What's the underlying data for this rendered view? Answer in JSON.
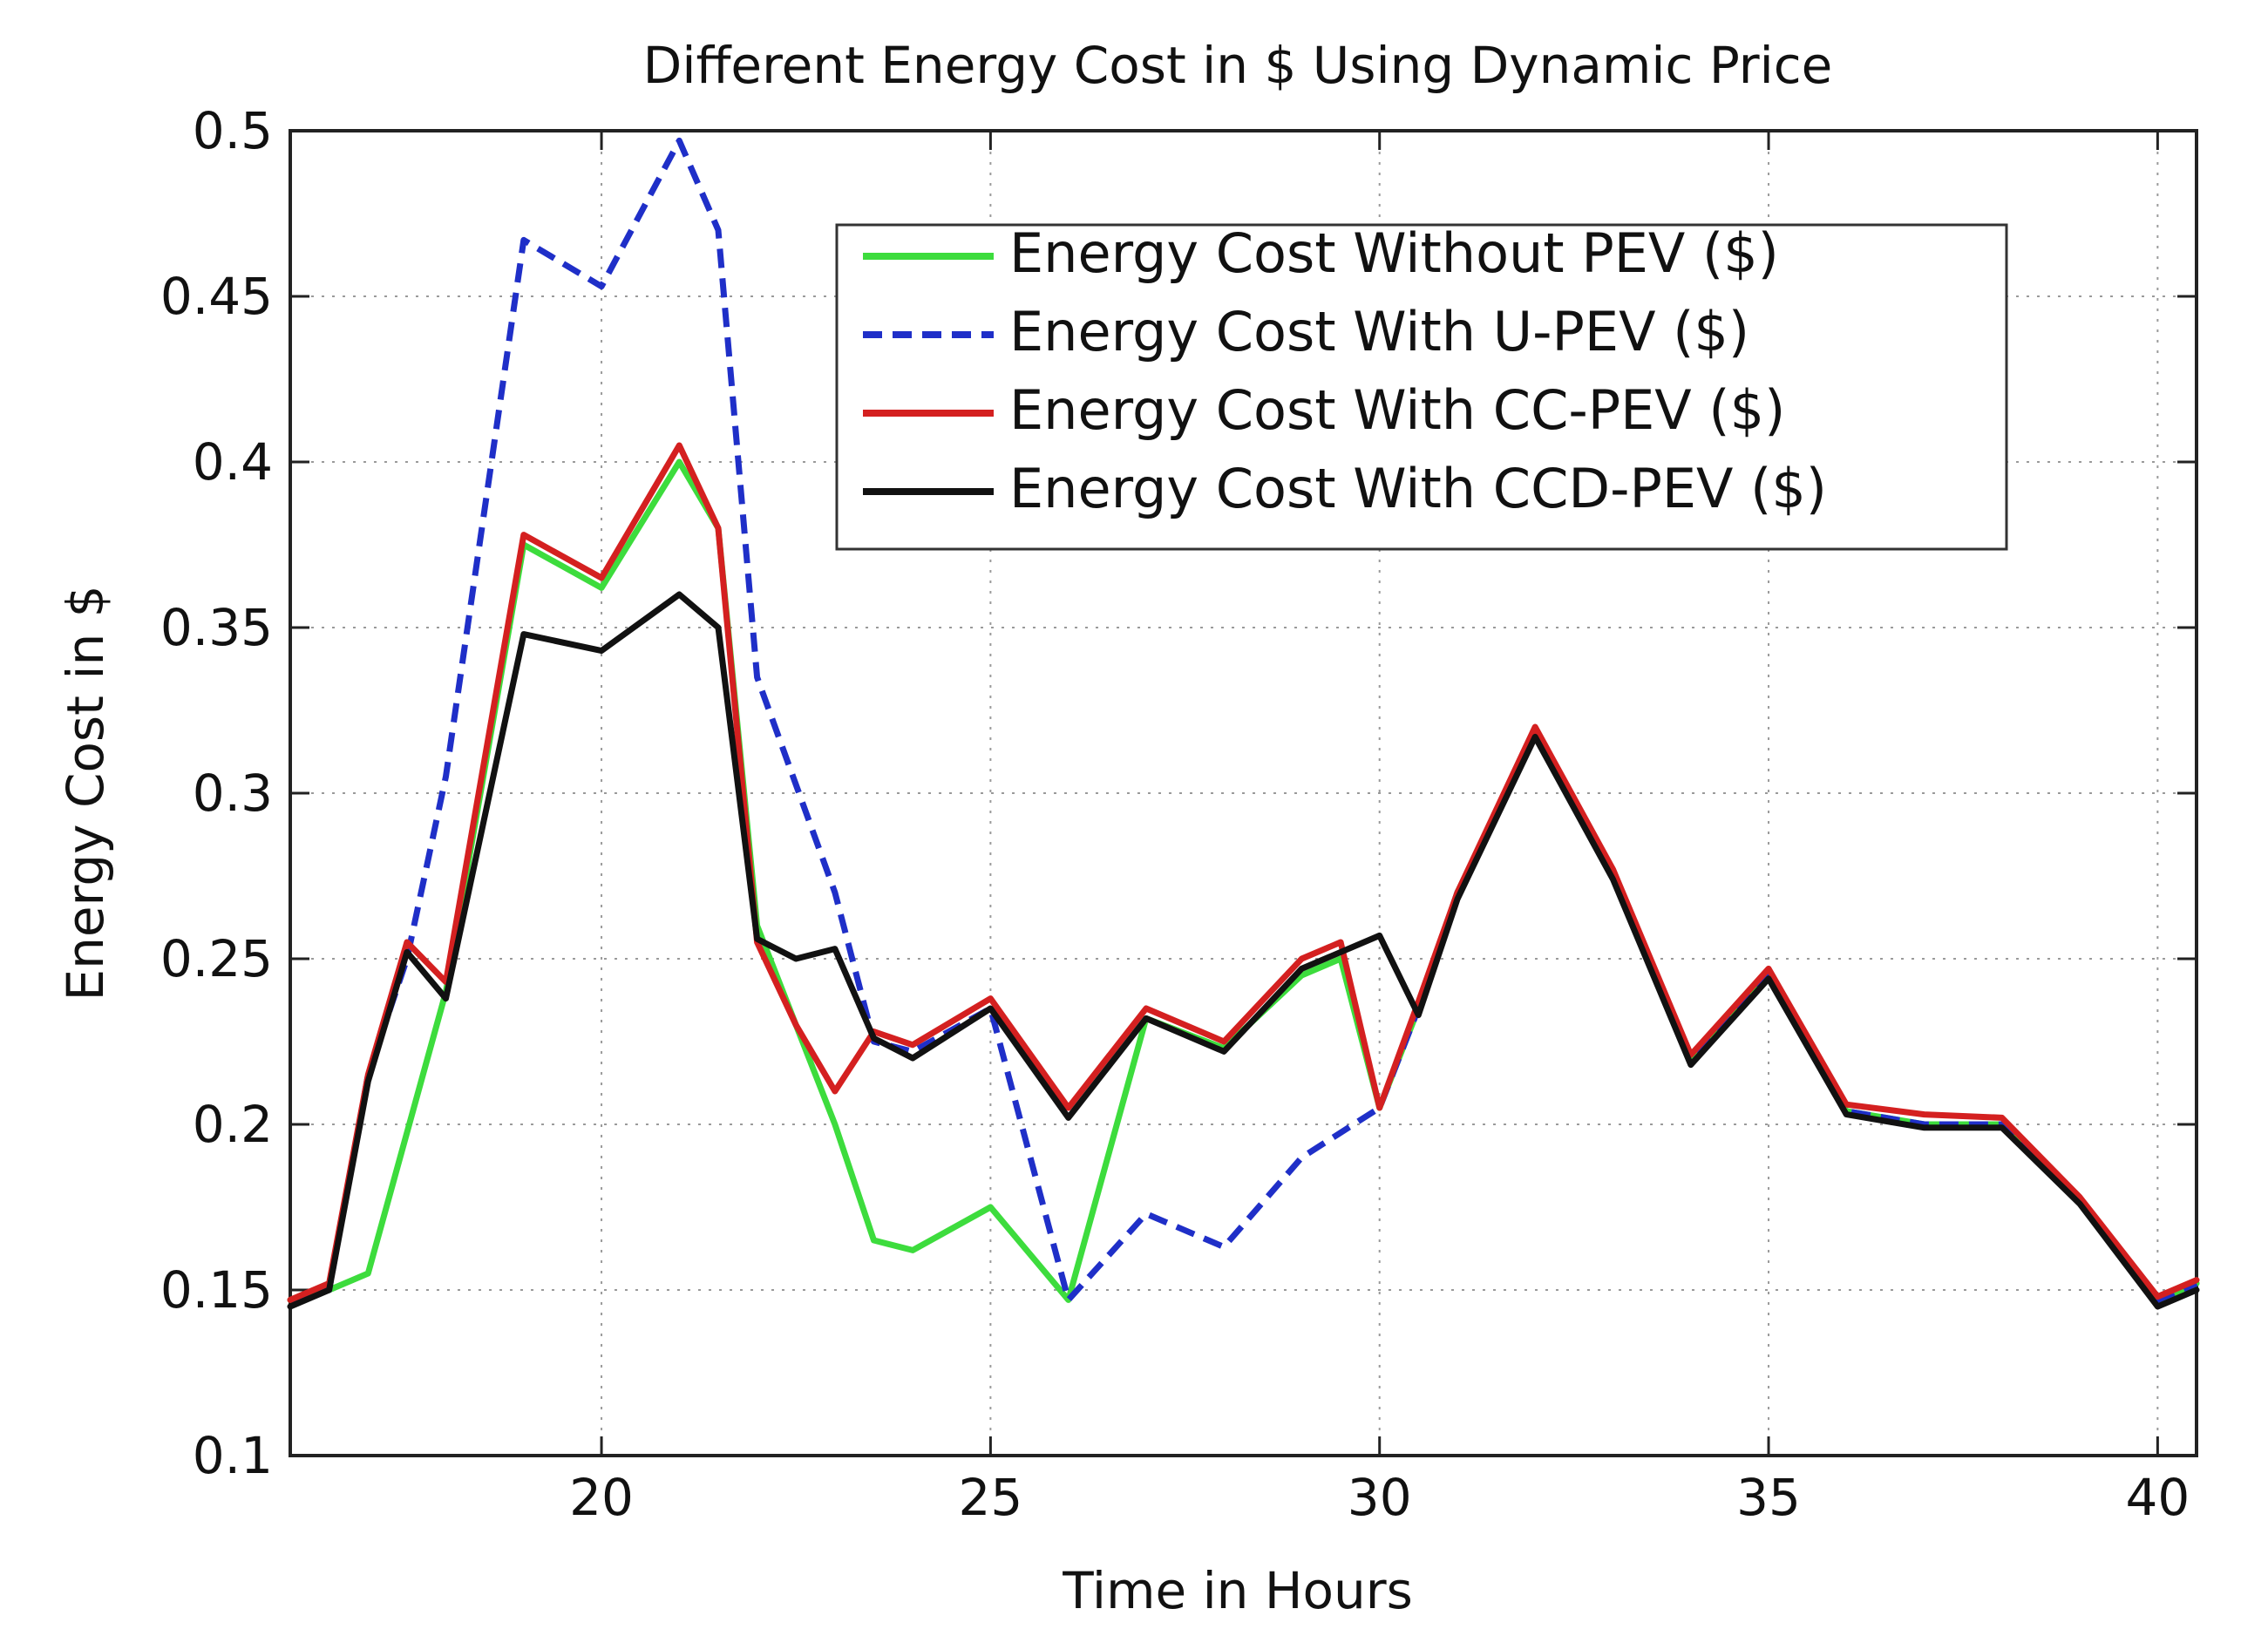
{
  "chart_data": {
    "type": "line",
    "title": "Different Energy Cost in $ Using Dynamic Price",
    "xlabel": "Time in Hours",
    "ylabel": "Energy Cost in $",
    "xlim": [
      16,
      40.5
    ],
    "ylim": [
      0.1,
      0.5
    ],
    "xticks": [
      20,
      25,
      30,
      35,
      40
    ],
    "yticks": [
      0.1,
      0.15,
      0.2,
      0.25,
      0.3,
      0.35,
      0.4,
      0.45,
      0.5
    ],
    "xtick_labels": [
      "20",
      "25",
      "30",
      "35",
      "40"
    ],
    "ytick_labels": [
      "0.1",
      "0.15",
      "0.2",
      "0.25",
      "0.3",
      "0.35",
      "0.4",
      "0.45",
      "0.5"
    ],
    "grid": true,
    "legend_position": "top-right",
    "series": [
      {
        "name": "Energy Cost Without PEV ($)",
        "color": "#3ddc3d",
        "dash": "solid",
        "points": [
          [
            16,
            0.147
          ],
          [
            16.5,
            0.15
          ],
          [
            17,
            0.155
          ],
          [
            18,
            0.24
          ],
          [
            19,
            0.375
          ],
          [
            20,
            0.362
          ],
          [
            21,
            0.4
          ],
          [
            21.5,
            0.38
          ],
          [
            22,
            0.26
          ],
          [
            22.5,
            0.23
          ],
          [
            23,
            0.2
          ],
          [
            23.5,
            0.165
          ],
          [
            24,
            0.162
          ],
          [
            25,
            0.175
          ],
          [
            26,
            0.147
          ],
          [
            27,
            0.232
          ],
          [
            28,
            0.223
          ],
          [
            29,
            0.245
          ],
          [
            29.5,
            0.25
          ],
          [
            30,
            0.205
          ],
          [
            30.5,
            0.235
          ],
          [
            31,
            0.27
          ],
          [
            32,
            0.318
          ],
          [
            33,
            0.275
          ],
          [
            34,
            0.22
          ],
          [
            35,
            0.245
          ],
          [
            36,
            0.204
          ],
          [
            37,
            0.2
          ],
          [
            38,
            0.2
          ],
          [
            39,
            0.177
          ],
          [
            40,
            0.147
          ],
          [
            40.5,
            0.152
          ]
        ]
      },
      {
        "name": "Energy Cost With U-PEV ($)",
        "color": "#1f2fc8",
        "dash": "dashed",
        "points": [
          [
            16,
            0.147
          ],
          [
            16.5,
            0.15
          ],
          [
            17,
            0.215
          ],
          [
            17.5,
            0.25
          ],
          [
            18,
            0.305
          ],
          [
            19,
            0.467
          ],
          [
            20,
            0.453
          ],
          [
            21,
            0.497
          ],
          [
            21.5,
            0.47
          ],
          [
            22,
            0.335
          ],
          [
            23,
            0.27
          ],
          [
            23.5,
            0.225
          ],
          [
            24,
            0.222
          ],
          [
            25,
            0.235
          ],
          [
            26,
            0.147
          ],
          [
            27,
            0.173
          ],
          [
            28,
            0.163
          ],
          [
            29,
            0.19
          ],
          [
            30,
            0.205
          ],
          [
            30.5,
            0.235
          ],
          [
            31,
            0.27
          ],
          [
            32,
            0.318
          ],
          [
            33,
            0.275
          ],
          [
            34,
            0.22
          ],
          [
            35,
            0.245
          ],
          [
            36,
            0.204
          ],
          [
            37,
            0.2
          ],
          [
            38,
            0.2
          ],
          [
            39,
            0.177
          ],
          [
            40,
            0.147
          ],
          [
            40.5,
            0.152
          ]
        ]
      },
      {
        "name": "Energy Cost With CC-PEV ($)",
        "color": "#d42020",
        "dash": "solid",
        "points": [
          [
            16,
            0.147
          ],
          [
            16.5,
            0.152
          ],
          [
            17,
            0.215
          ],
          [
            17.5,
            0.255
          ],
          [
            18,
            0.243
          ],
          [
            19,
            0.378
          ],
          [
            20,
            0.365
          ],
          [
            21,
            0.405
          ],
          [
            21.5,
            0.38
          ],
          [
            22,
            0.255
          ],
          [
            22.5,
            0.23
          ],
          [
            23,
            0.21
          ],
          [
            23.5,
            0.228
          ],
          [
            24,
            0.224
          ],
          [
            25,
            0.238
          ],
          [
            26,
            0.205
          ],
          [
            27,
            0.235
          ],
          [
            28,
            0.225
          ],
          [
            29,
            0.25
          ],
          [
            29.5,
            0.255
          ],
          [
            30,
            0.205
          ],
          [
            30.5,
            0.237
          ],
          [
            31,
            0.27
          ],
          [
            32,
            0.32
          ],
          [
            33,
            0.277
          ],
          [
            34,
            0.221
          ],
          [
            35,
            0.247
          ],
          [
            36,
            0.206
          ],
          [
            37,
            0.203
          ],
          [
            38,
            0.202
          ],
          [
            39,
            0.178
          ],
          [
            40,
            0.148
          ],
          [
            40.5,
            0.153
          ]
        ]
      },
      {
        "name": "Energy Cost With CCD-PEV ($)",
        "color": "#111111",
        "dash": "solid",
        "points": [
          [
            16,
            0.145
          ],
          [
            16.5,
            0.15
          ],
          [
            17,
            0.213
          ],
          [
            17.5,
            0.252
          ],
          [
            18,
            0.238
          ],
          [
            19,
            0.348
          ],
          [
            20,
            0.343
          ],
          [
            21,
            0.36
          ],
          [
            21.5,
            0.35
          ],
          [
            22,
            0.256
          ],
          [
            22.5,
            0.25
          ],
          [
            23,
            0.253
          ],
          [
            23.5,
            0.226
          ],
          [
            24,
            0.22
          ],
          [
            25,
            0.235
          ],
          [
            26,
            0.202
          ],
          [
            27,
            0.232
          ],
          [
            28,
            0.222
          ],
          [
            29,
            0.247
          ],
          [
            30,
            0.257
          ],
          [
            30.5,
            0.233
          ],
          [
            31,
            0.268
          ],
          [
            32,
            0.317
          ],
          [
            33,
            0.274
          ],
          [
            34,
            0.218
          ],
          [
            35,
            0.244
          ],
          [
            36,
            0.203
          ],
          [
            37,
            0.199
          ],
          [
            38,
            0.199
          ],
          [
            39,
            0.176
          ],
          [
            40,
            0.145
          ],
          [
            40.5,
            0.15
          ]
        ]
      }
    ]
  }
}
